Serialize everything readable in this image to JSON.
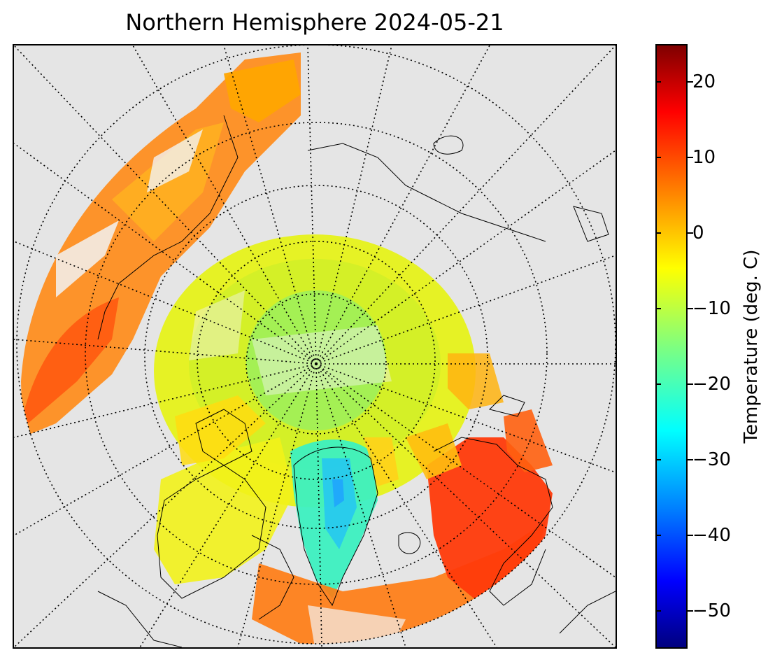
{
  "title": "Northern Hemisphere 2024-05-21",
  "map": {
    "projection": "north-polar-stereographic",
    "graticule": "dotted",
    "background_color": "#e5e5e5",
    "no_data_color": "#f2f2f2",
    "coastline_color": "#000000"
  },
  "colorbar": {
    "label": "Temperature (deg. C)",
    "colormap": "jet",
    "range": [
      -55,
      25
    ],
    "ticks": [
      {
        "value": 20,
        "label": "20"
      },
      {
        "value": 10,
        "label": "10"
      },
      {
        "value": 0,
        "label": "0"
      },
      {
        "value": -10,
        "label": "−10"
      },
      {
        "value": -20,
        "label": "−20"
      },
      {
        "value": -30,
        "label": "−30"
      },
      {
        "value": -40,
        "label": "−40"
      },
      {
        "value": -50,
        "label": "−50"
      }
    ]
  }
}
